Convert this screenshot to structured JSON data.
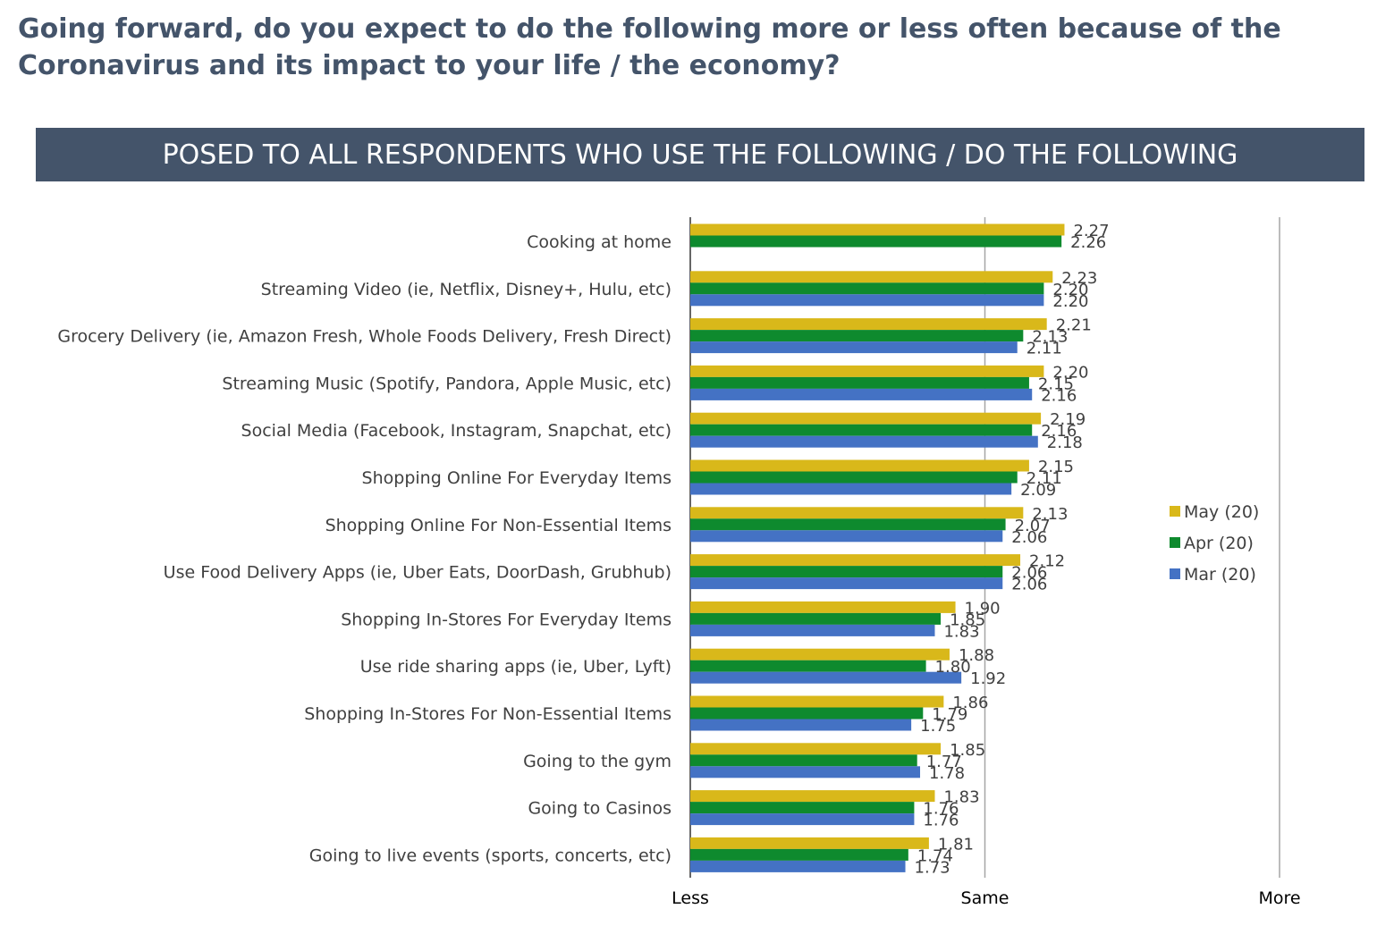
{
  "title": "Going forward, do you expect to do the following more or less often because of the Coronavirus and its impact to your life / the economy?",
  "banner": "POSED TO ALL RESPONDENTS WHO USE THE FOLLOWING / DO THE FOLLOWING",
  "chart_data": {
    "type": "bar",
    "orientation": "horizontal",
    "categories": [
      "Cooking at home",
      "Streaming Video (ie, Netflix, Disney+, Hulu, etc)",
      "Grocery Delivery (ie, Amazon Fresh, Whole Foods Delivery, Fresh Direct)",
      "Streaming Music (Spotify, Pandora, Apple Music, etc)",
      "Social Media  (Facebook, Instagram, Snapchat, etc)",
      "Shopping Online For Everyday Items",
      "Shopping Online For Non-Essential Items",
      "Use Food Delivery Apps (ie, Uber Eats, DoorDash, Grubhub)",
      "Shopping In-Stores For Everyday Items",
      "Use ride sharing apps (ie, Uber, Lyft)",
      "Shopping In-Stores For Non-Essential Items",
      "Going to the gym",
      "Going to Casinos",
      "Going to live events (sports, concerts, etc)"
    ],
    "series": [
      {
        "name": "May (20)",
        "color": "#d9b81a",
        "values": [
          2.27,
          2.23,
          2.21,
          2.2,
          2.19,
          2.15,
          2.13,
          2.12,
          1.9,
          1.88,
          1.86,
          1.85,
          1.83,
          1.81
        ]
      },
      {
        "name": "Apr (20)",
        "color": "#0e8a2e",
        "values": [
          2.26,
          2.2,
          2.13,
          2.15,
          2.16,
          2.11,
          2.07,
          2.06,
          1.85,
          1.8,
          1.79,
          1.77,
          1.76,
          1.74
        ]
      },
      {
        "name": "Mar (20)",
        "color": "#4472c4",
        "values": [
          null,
          2.2,
          2.11,
          2.16,
          2.18,
          2.09,
          2.06,
          2.06,
          1.83,
          1.92,
          1.75,
          1.78,
          1.76,
          1.73
        ]
      }
    ],
    "value_labels": {
      "May (20)": [
        "2.27",
        "2.23",
        "2.21",
        "2.20",
        "2.19",
        "2.15",
        "2.13",
        "2.12",
        "1.90",
        "1.88",
        "1.86",
        "1.85",
        "1.83",
        "1.81"
      ],
      "Apr (20)": [
        "2.26",
        "2.20",
        "2.13",
        "2.15",
        "2.16",
        "2.11",
        "2.07",
        "2.06",
        "1.85",
        "1.80",
        "1.79",
        "1.77",
        "1.76",
        "1.74"
      ],
      "Mar (20)": [
        "",
        "2.20",
        "2.11",
        "2.16",
        "2.18",
        "2.09",
        "2.06",
        "2.06",
        "1.83",
        "1.92",
        "1.75",
        "1.78",
        "1.76",
        "1.73"
      ]
    },
    "xlim": [
      1,
      3
    ],
    "xticks": [
      1,
      2,
      3
    ],
    "xtick_labels": [
      "Less",
      "Same",
      "More"
    ],
    "grid": "vertical lines at each tick",
    "legend_position": "right"
  }
}
